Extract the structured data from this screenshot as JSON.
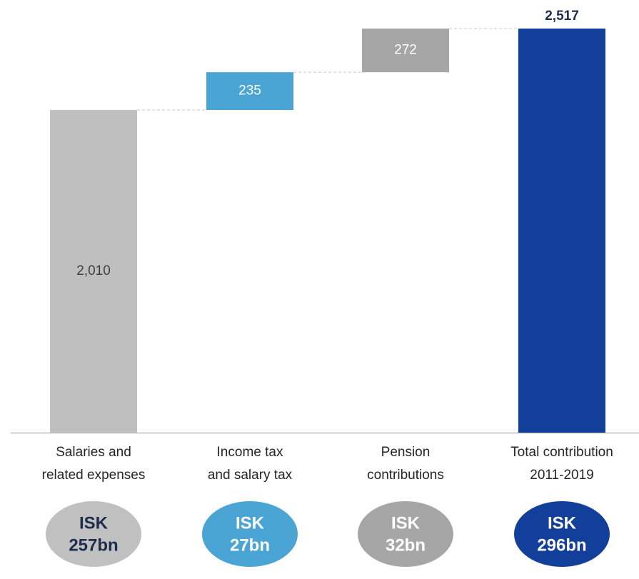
{
  "chart_data": {
    "type": "waterfall",
    "categories": [
      [
        "Salaries and",
        "related expenses"
      ],
      [
        "Income tax",
        "and salary tax"
      ],
      [
        "Pension",
        "contributions"
      ],
      [
        "Total contribution",
        "2011-2019"
      ]
    ],
    "values": [
      2010,
      235,
      272,
      2517
    ],
    "value_labels": [
      "2,010",
      "235",
      "272",
      "2,517"
    ],
    "measure": [
      "relative",
      "relative",
      "relative",
      "total"
    ],
    "colors": [
      "#bfbfbf",
      "#4aa5d5",
      "#a6a6a6",
      "#123f99"
    ],
    "label_colors": [
      "#404040",
      "#ffffff",
      "#ffffff",
      "#1f2d4d"
    ],
    "badges": [
      {
        "lines": [
          "ISK",
          "257bn"
        ],
        "color": "#c0c0c0",
        "text_color": "#1f2d4d"
      },
      {
        "lines": [
          "ISK",
          "27bn"
        ],
        "color": "#4aa5d5",
        "text_color": "#ffffff"
      },
      {
        "lines": [
          "ISK",
          "32bn"
        ],
        "color": "#a6a6a6",
        "text_color": "#ffffff"
      },
      {
        "lines": [
          "ISK",
          "296bn"
        ],
        "color": "#123f99",
        "text_color": "#ffffff"
      }
    ]
  }
}
